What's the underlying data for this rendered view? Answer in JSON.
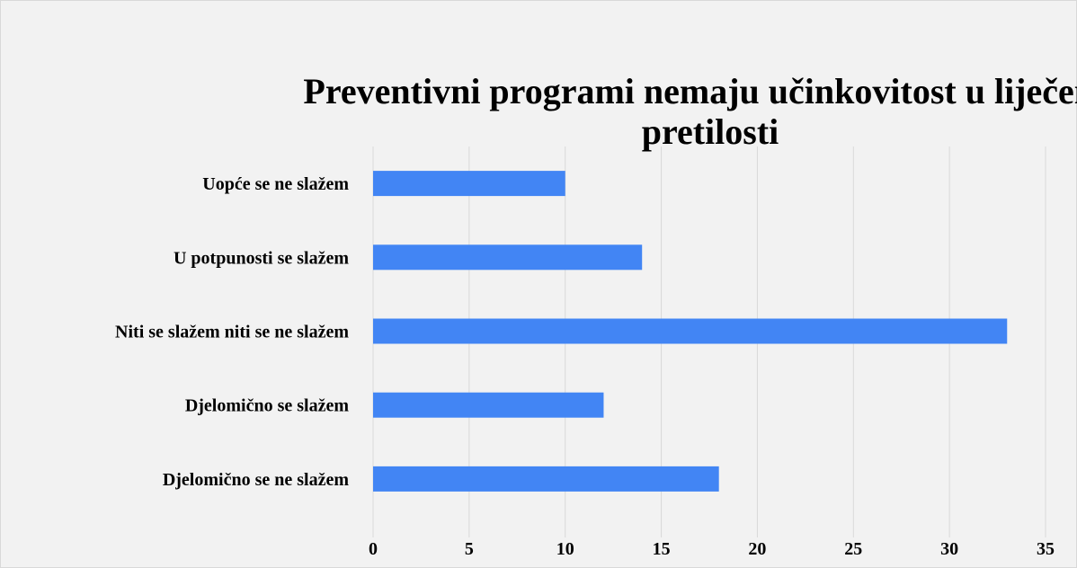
{
  "chart_data": {
    "type": "bar",
    "orientation": "horizontal",
    "title": "Preventivni programi nemaju učinkovitost u liječenju pretilosti",
    "categories": [
      "Uopće se ne slažem",
      "U potpunosti se slažem",
      "Niti se slažem niti se ne slažem",
      "Djelomično se slažem",
      "Djelomično se ne slažem"
    ],
    "values": [
      10,
      14,
      33,
      12,
      18
    ],
    "color": "#4285f4",
    "xlim": [
      0,
      35
    ],
    "xticks": [
      0,
      5,
      10,
      15,
      20,
      25,
      30,
      35
    ],
    "grid": true
  }
}
